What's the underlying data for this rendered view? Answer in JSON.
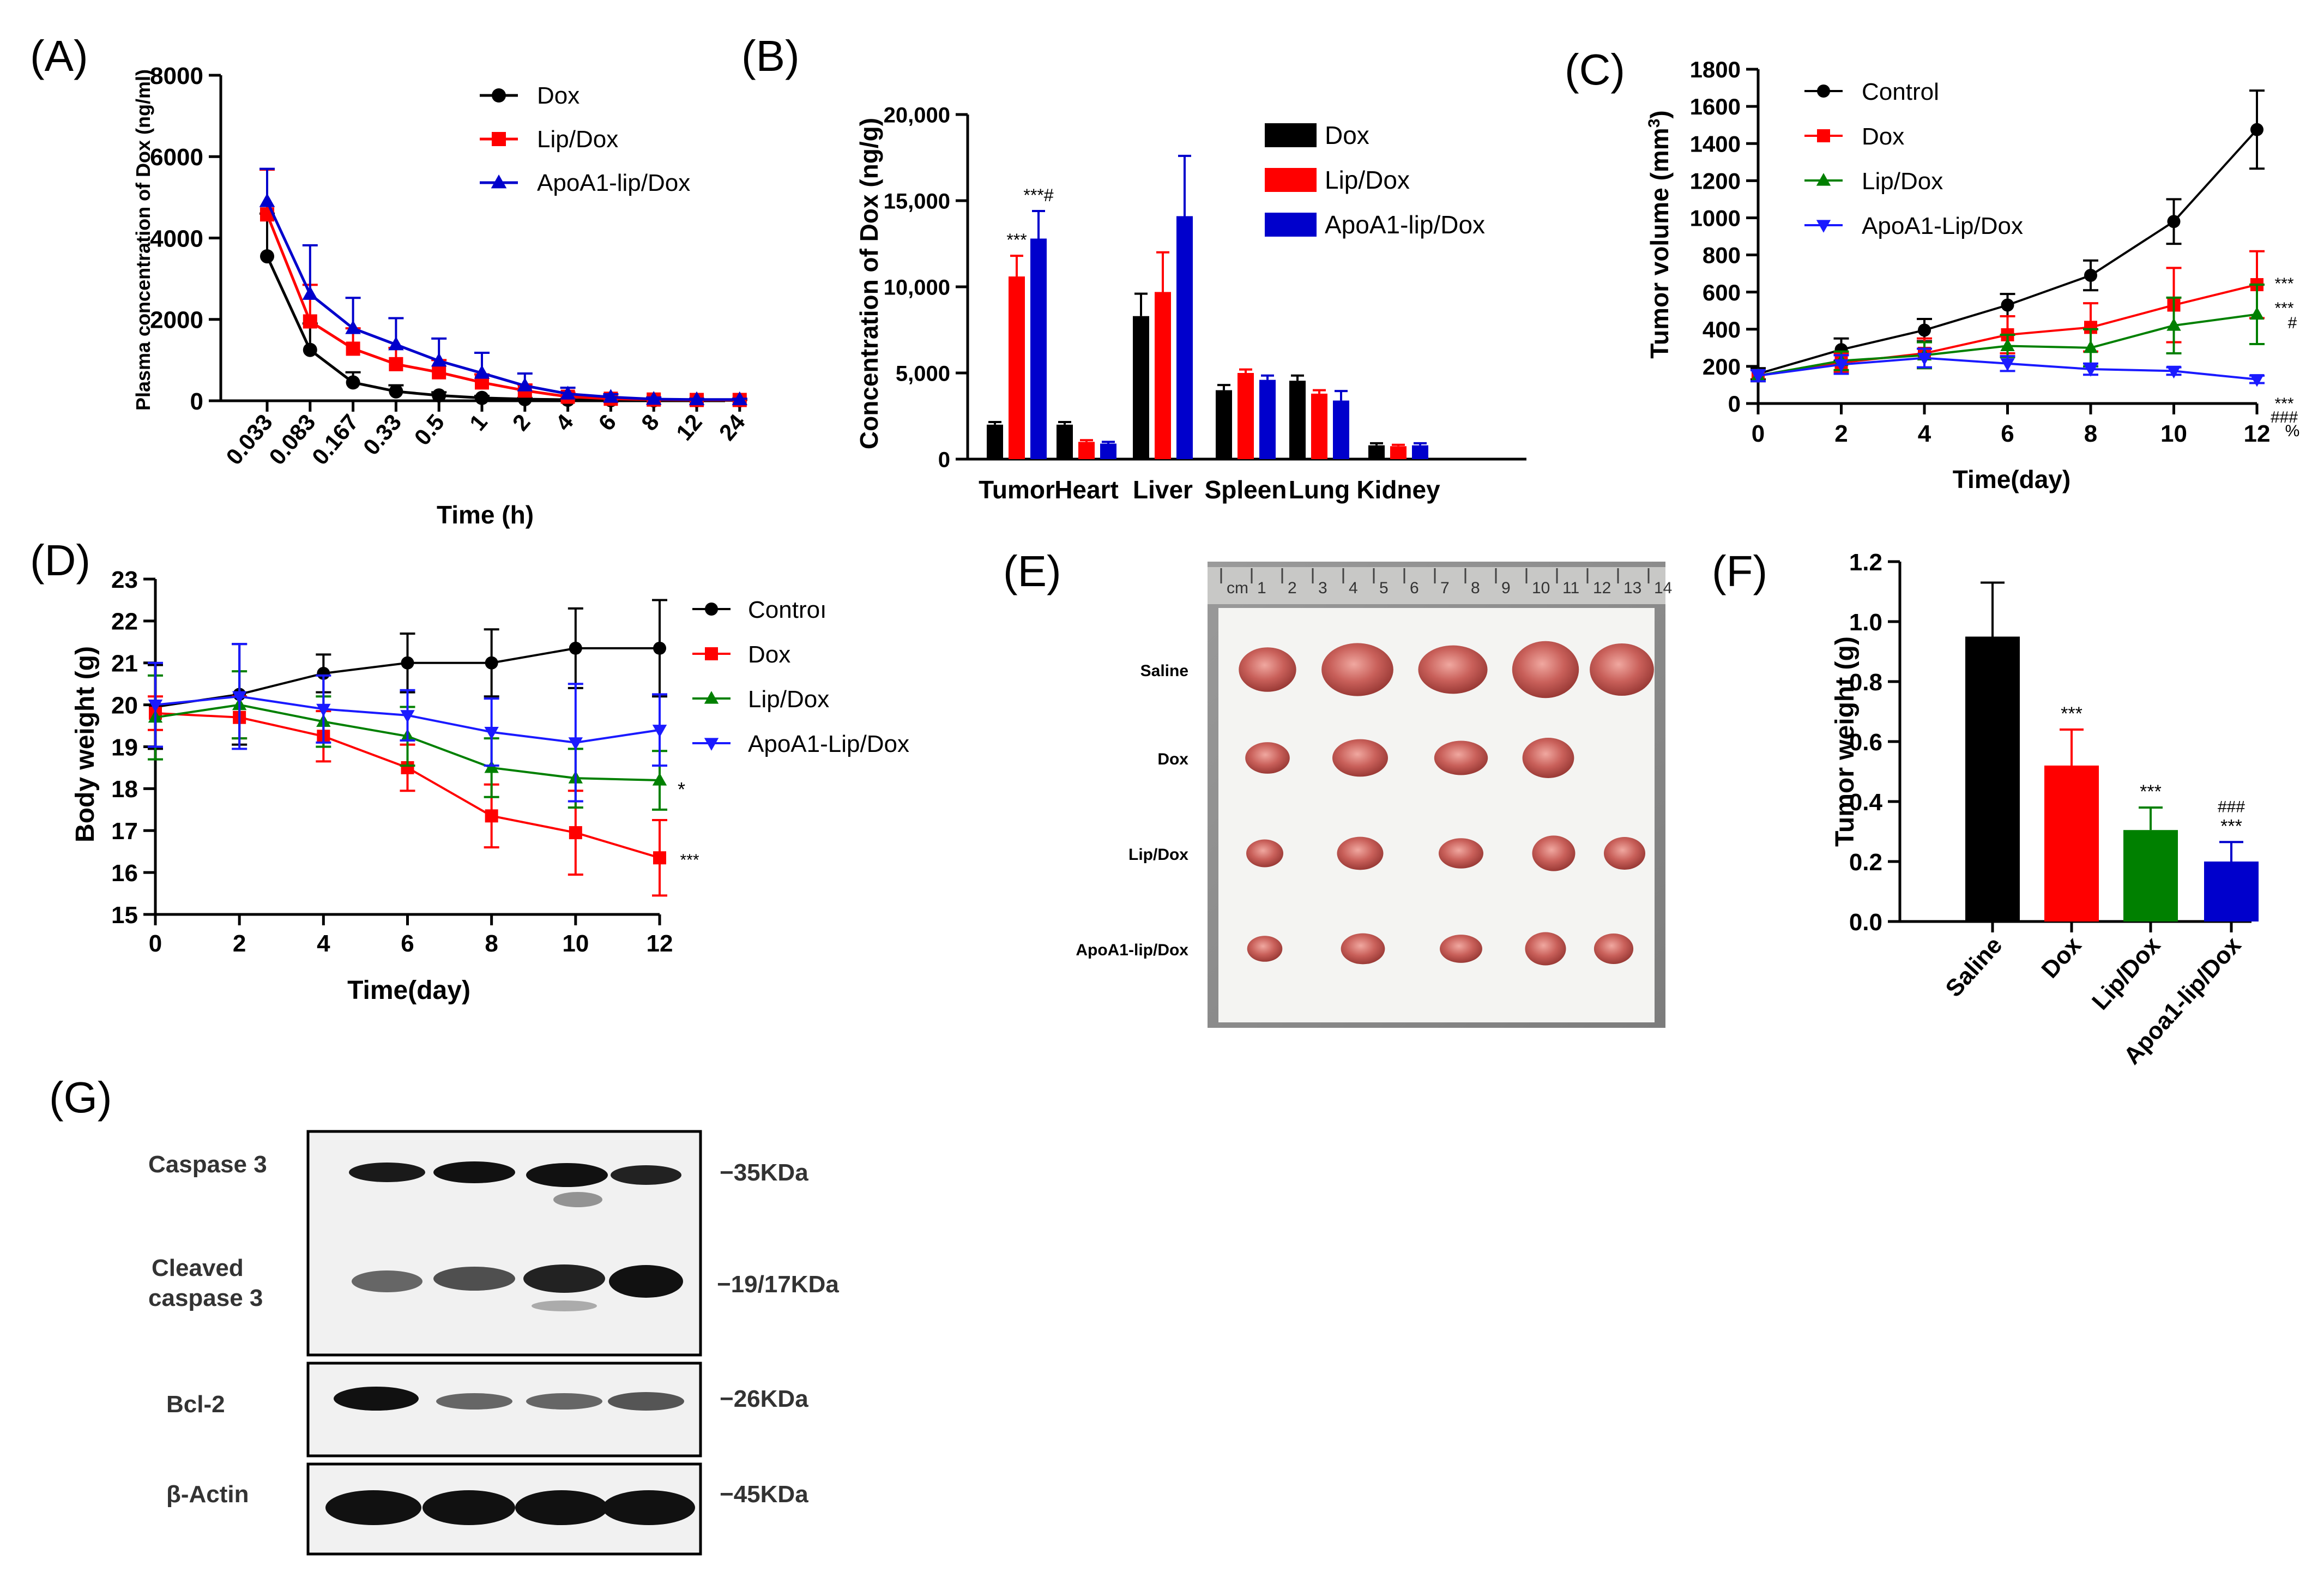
{
  "colors": {
    "black": "#000000",
    "red": "#ff0000",
    "blue": "#0000cc",
    "green": "#008000",
    "blue_line": "#1a1aff",
    "panel_f_blue": "#0000cc",
    "photo_bg": "#8a8a8a"
  },
  "chart_data": [
    {
      "id": "A",
      "panel_label": "(A)",
      "type": "line",
      "ylabel": "Plasma concentration of Dox (ng/ml)",
      "xlabel": "Time (h)",
      "categories": [
        "0.033",
        "0.083",
        "0.167",
        "0.33",
        "0.5",
        "1",
        "2",
        "4",
        "6",
        "8",
        "12",
        "24"
      ],
      "yticks": [
        "0",
        "2000",
        "4000",
        "6000",
        "8000"
      ],
      "ylim": [
        0,
        8000
      ],
      "series": [
        {
          "name": "Dox",
          "color": "#000000",
          "marker": "circle",
          "values": [
            3550,
            1250,
            450,
            230,
            130,
            70,
            40,
            25,
            15,
            10,
            10,
            10
          ],
          "err": [
            1050,
            650,
            250,
            150,
            80,
            50,
            30,
            20,
            10,
            10,
            10,
            10
          ]
        },
        {
          "name": "Lip/Dox",
          "color": "#ff0000",
          "marker": "square",
          "values": [
            4580,
            1950,
            1280,
            900,
            700,
            450,
            250,
            100,
            50,
            30,
            20,
            20
          ],
          "err": [
            1100,
            900,
            500,
            400,
            300,
            200,
            150,
            100,
            40,
            20,
            20,
            20
          ]
        },
        {
          "name": "ApoA1-lip/Dox",
          "color": "#0000cc",
          "marker": "triangle",
          "values": [
            4900,
            2620,
            1780,
            1380,
            980,
            680,
            370,
            170,
            90,
            40,
            30,
            30
          ],
          "err": [
            800,
            1200,
            750,
            650,
            550,
            500,
            300,
            150,
            70,
            40,
            20,
            20
          ]
        }
      ]
    },
    {
      "id": "B",
      "panel_label": "(B)",
      "type": "bar",
      "ylabel": "Concentration of Dox (ng/g)",
      "categories": [
        "Tumor",
        "Heart",
        "Liver",
        "Spleen",
        "Lung",
        "Kidney"
      ],
      "yticks": [
        "0",
        "5,000",
        "10,000",
        "15,000",
        "20,000"
      ],
      "ylim": [
        0,
        20000
      ],
      "series": [
        {
          "name": "Dox",
          "color": "#000000",
          "values": [
            2000,
            2000,
            8300,
            4000,
            4550,
            800
          ],
          "err": [
            150,
            150,
            1300,
            300,
            300,
            120
          ]
        },
        {
          "name": "Lip/Dox",
          "color": "#ff0000",
          "values": [
            10600,
            1000,
            9700,
            5000,
            3800,
            750
          ],
          "err": [
            1200,
            100,
            2300,
            200,
            200,
            80
          ]
        },
        {
          "name": "ApoA1-lip/Dox",
          "color": "#0000cc",
          "values": [
            12800,
            900,
            14100,
            4600,
            3400,
            800
          ],
          "err": [
            1600,
            100,
            3500,
            250,
            550,
            120
          ]
        }
      ],
      "annotations": [
        {
          "text": "***",
          "cat": 0,
          "series": 1
        },
        {
          "text": "***#",
          "cat": 0,
          "series": 2
        }
      ]
    },
    {
      "id": "C",
      "panel_label": "(C)",
      "type": "line",
      "ylabel": "Tumor volume (mm",
      "ylabel_sup": "3",
      "ylabel_end": ")",
      "xlabel": "Time(day)",
      "x": [
        0,
        2,
        4,
        6,
        8,
        10,
        12
      ],
      "yticks": [
        "0",
        "200",
        "400",
        "600",
        "800",
        "1000",
        "1200",
        "1400",
        "1600",
        "1800"
      ],
      "ylim": [
        0,
        1800
      ],
      "xlim": [
        0,
        12
      ],
      "series": [
        {
          "name": "Control",
          "color": "#000000",
          "marker": "circle",
          "values": [
            160,
            290,
            395,
            530,
            690,
            980,
            1475
          ],
          "err": [
            30,
            60,
            60,
            60,
            80,
            120,
            210
          ]
        },
        {
          "name": "Dox",
          "color": "#ff0000",
          "marker": "square",
          "values": [
            150,
            220,
            270,
            370,
            410,
            530,
            640
          ],
          "err": [
            30,
            50,
            80,
            100,
            130,
            200,
            180
          ]
        },
        {
          "name": "Lip/Dox",
          "color": "#008000",
          "marker": "triangle",
          "values": [
            150,
            230,
            260,
            310,
            300,
            420,
            480
          ],
          "err": [
            30,
            50,
            70,
            60,
            100,
            150,
            160
          ]
        },
        {
          "name": "ApoA1-Lip/Dox",
          "color": "#1a1aff",
          "marker": "triangle-down",
          "values": [
            150,
            210,
            245,
            215,
            185,
            175,
            130
          ],
          "err": [
            30,
            50,
            50,
            40,
            30,
            20,
            20
          ]
        }
      ],
      "annotations": [
        "***",
        "***",
        "#",
        "***",
        "###",
        "%"
      ]
    },
    {
      "id": "D",
      "panel_label": "(D)",
      "type": "line",
      "ylabel": "Body weight (g)",
      "xlabel": "Time(day)",
      "x": [
        0,
        2,
        4,
        6,
        8,
        10,
        12
      ],
      "yticks": [
        "15",
        "16",
        "17",
        "18",
        "19",
        "20",
        "21",
        "22",
        "23"
      ],
      "ylim": [
        15,
        23
      ],
      "xlim": [
        0,
        12
      ],
      "series": [
        {
          "name": "Controı",
          "color": "#000000",
          "marker": "circle",
          "values": [
            19.95,
            20.25,
            20.75,
            21.0,
            21.0,
            21.35,
            21.35
          ],
          "err": [
            1.0,
            1.2,
            0.45,
            0.7,
            0.8,
            0.95,
            1.15
          ]
        },
        {
          "name": "Dox",
          "color": "#ff0000",
          "marker": "square",
          "values": [
            19.8,
            19.7,
            19.25,
            18.5,
            17.35,
            16.95,
            16.35
          ],
          "err": [
            0.4,
            0.5,
            0.6,
            0.55,
            0.75,
            1.0,
            0.9
          ]
        },
        {
          "name": "Lip/Dox",
          "color": "#008000",
          "marker": "triangle",
          "values": [
            19.7,
            20.0,
            19.6,
            19.25,
            18.5,
            18.25,
            18.2
          ],
          "err": [
            1.0,
            0.8,
            0.6,
            0.7,
            0.7,
            0.7,
            0.7
          ]
        },
        {
          "name": "ApoA1-Lip/Dox",
          "color": "#1a1aff",
          "marker": "triangle-down",
          "values": [
            20.0,
            20.2,
            19.9,
            19.75,
            19.35,
            19.1,
            19.4
          ],
          "err": [
            1.0,
            1.25,
            0.8,
            0.6,
            0.8,
            1.4,
            0.85
          ]
        }
      ],
      "annotations": [
        "*",
        "***"
      ]
    },
    {
      "id": "F",
      "panel_label": "(F)",
      "type": "bar",
      "ylabel": "Tumor weight (g)",
      "categories": [
        "Saline",
        "Dox",
        "Lip/Dox",
        "Apoa1-lip/Dox"
      ],
      "yticks": [
        "0.0",
        "0.2",
        "0.4",
        "0.6",
        "0.8",
        "1.0",
        "1.2"
      ],
      "ylim": [
        0,
        1.2
      ],
      "values": [
        0.95,
        0.52,
        0.305,
        0.2
      ],
      "err": [
        0.18,
        0.12,
        0.075,
        0.065
      ],
      "colors": [
        "#000000",
        "#ff0000",
        "#008000",
        "#0000cc"
      ],
      "annotations": [
        "",
        "***",
        "***",
        "***"
      ],
      "annotations2": [
        "",
        "",
        "",
        "###"
      ]
    }
  ],
  "panel_e": {
    "label": "(E)",
    "ruler": [
      "cm",
      "1",
      "2",
      "3",
      "4",
      "5",
      "6",
      "7",
      "8",
      "9",
      "10",
      "11",
      "12",
      "13",
      "14"
    ],
    "rows": [
      {
        "label": "Saline",
        "count": 5
      },
      {
        "label": "Dox",
        "count": 4
      },
      {
        "label": "Lip/Dox",
        "count": 5
      },
      {
        "label": "ApoA1-lip/Dox",
        "count": 5
      }
    ]
  },
  "panel_g": {
    "label": "(G)",
    "left_labels": [
      "Caspase 3",
      "Cleaved",
      "caspase 3",
      "Bcl-2",
      "β-Actin"
    ],
    "right_labels": [
      "−35KDa",
      "−19/17KDa",
      "−26KDa",
      "−45KDa"
    ]
  }
}
